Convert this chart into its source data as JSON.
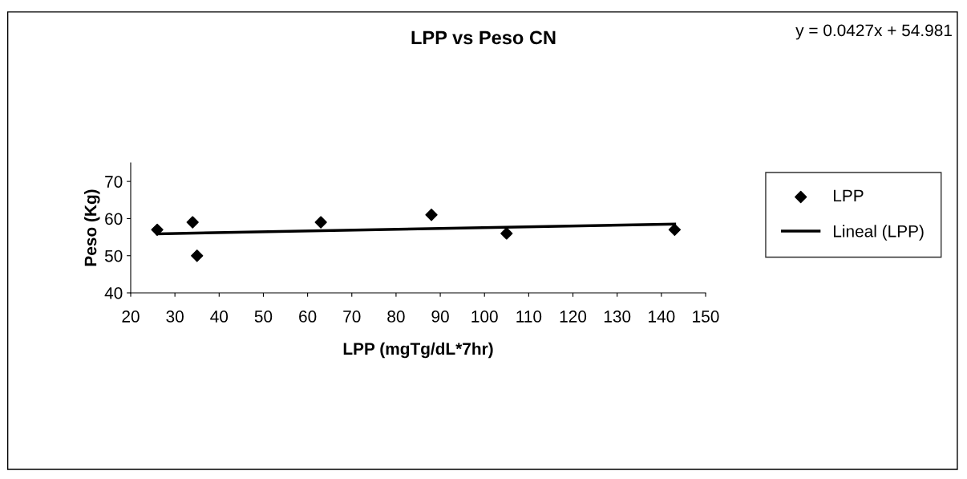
{
  "chart_data": {
    "type": "scatter",
    "title": "LPP vs Peso CN",
    "xlabel": "LPP (mgTg/dL*7hr)",
    "ylabel": "Peso (Kg)",
    "annotations": [
      "y = 0.0427x + 54.981"
    ],
    "series": [
      {
        "name": "LPP",
        "color": "#000000",
        "marker": "diamond",
        "x": [
          26,
          34,
          35,
          63,
          88,
          105,
          143
        ],
        "values": [
          57,
          59,
          50,
          59,
          61,
          56,
          57
        ]
      },
      {
        "name": "Lineal (LPP)",
        "type": "line",
        "color": "#000000",
        "marker": "none",
        "x": [
          26,
          143
        ],
        "values": [
          55.9,
          58.5
        ]
      }
    ],
    "xlim": [
      20,
      150
    ],
    "xticks": [
      20,
      30,
      40,
      50,
      60,
      70,
      80,
      90,
      100,
      110,
      120,
      130,
      140,
      150
    ],
    "ylim": [
      40,
      75
    ],
    "yticks": [
      40,
      50,
      60,
      70
    ],
    "grid": false,
    "legend": "right"
  }
}
